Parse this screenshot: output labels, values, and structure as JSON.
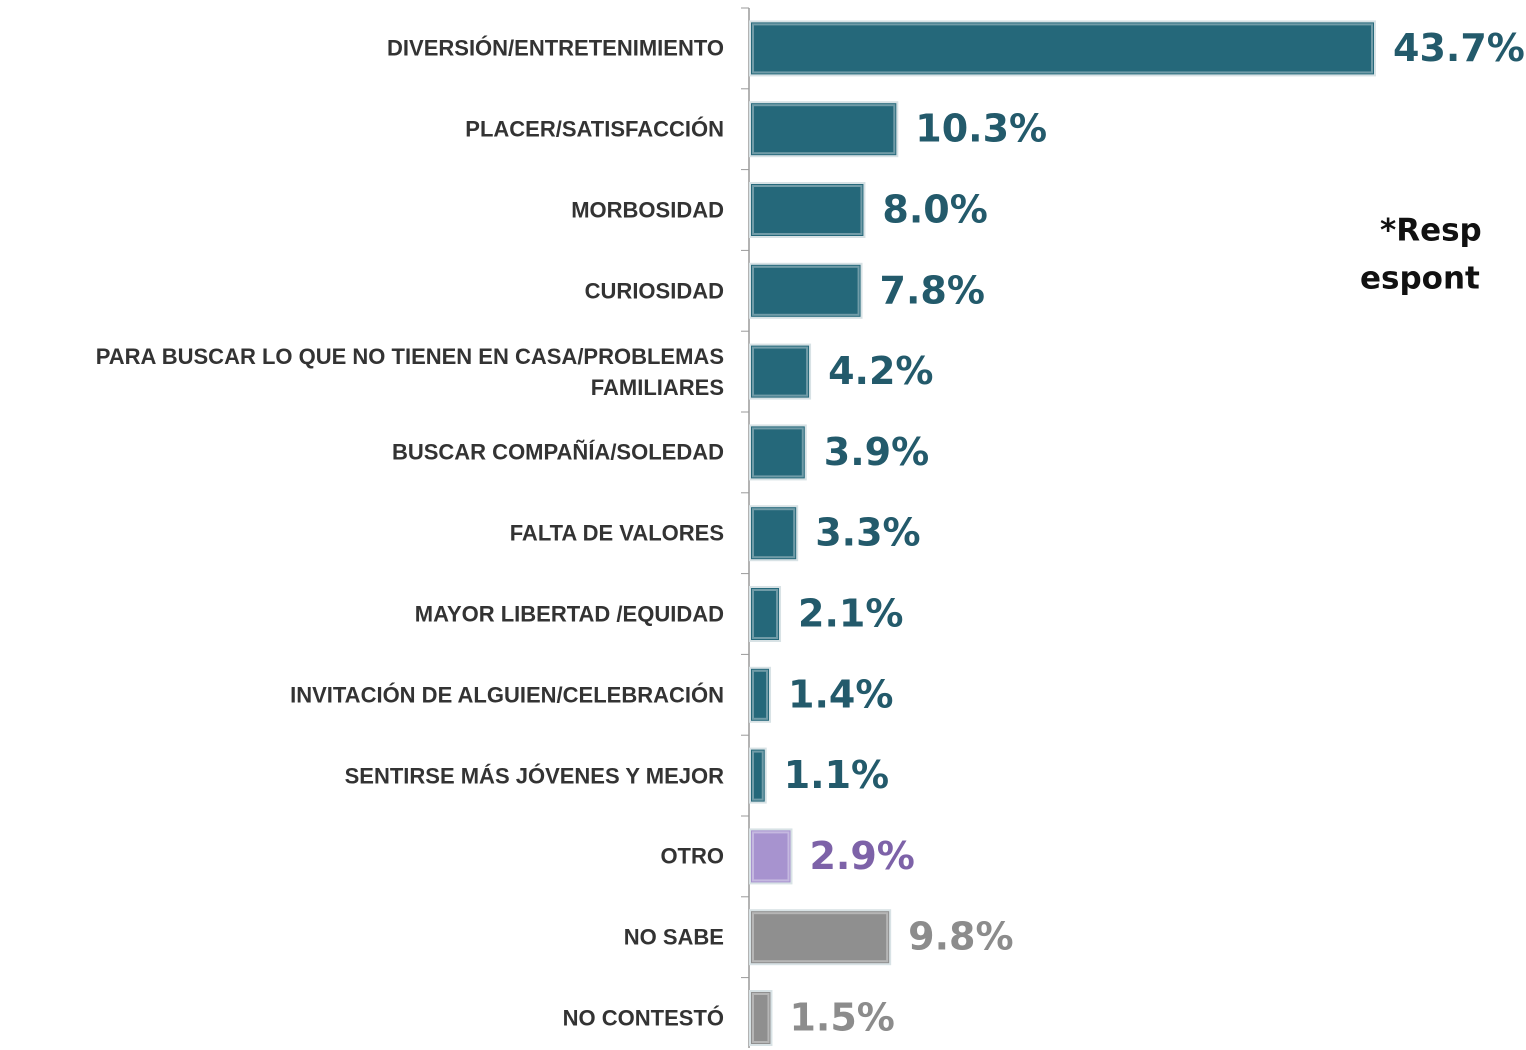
{
  "chart_data": {
    "type": "hbar",
    "categories": [
      "DIVERSIÓN/ENTRETENIMIENTO",
      "PLACER/SATISFACCIÓN",
      "MORBOSIDAD",
      "CURIOSIDAD",
      "PARA BUSCAR LO QUE NO TIENEN EN CASA/PROBLEMAS FAMILIARES",
      "BUSCAR COMPAÑÍA/SOLEDAD",
      "FALTA DE VALORES",
      "MAYOR LIBERTAD /EQUIDAD",
      "INVITACIÓN DE ALGUIEN/CELEBRACIÓN",
      "SENTIRSE MÁS JÓVENES Y MEJOR",
      "OTRO",
      "NO SABE",
      "NO CONTESTÓ"
    ],
    "values": [
      43.7,
      10.3,
      8.0,
      7.8,
      4.2,
      3.9,
      3.3,
      2.1,
      1.4,
      1.1,
      2.9,
      9.8,
      1.5
    ],
    "value_labels": [
      "43.7%",
      "10.3%",
      "8.0%",
      "7.8%",
      "4.2%",
      "3.9%",
      "3.3%",
      "2.1%",
      "1.4%",
      "1.1%",
      "2.9%",
      "9.8%",
      "1.5%"
    ],
    "colors": [
      "#25687a",
      "#25687a",
      "#25687a",
      "#25687a",
      "#25687a",
      "#25687a",
      "#25687a",
      "#25687a",
      "#25687a",
      "#25687a",
      "#a793cf",
      "#8f8f8f",
      "#8f8f8f"
    ],
    "label_colors": [
      "#235a6b",
      "#235a6b",
      "#235a6b",
      "#235a6b",
      "#235a6b",
      "#235a6b",
      "#235a6b",
      "#235a6b",
      "#235a6b",
      "#235a6b",
      "#7d62a8",
      "#8c8c8c",
      "#8c8c8c"
    ],
    "annotation": [
      "*Resp",
      "espont"
    ]
  }
}
